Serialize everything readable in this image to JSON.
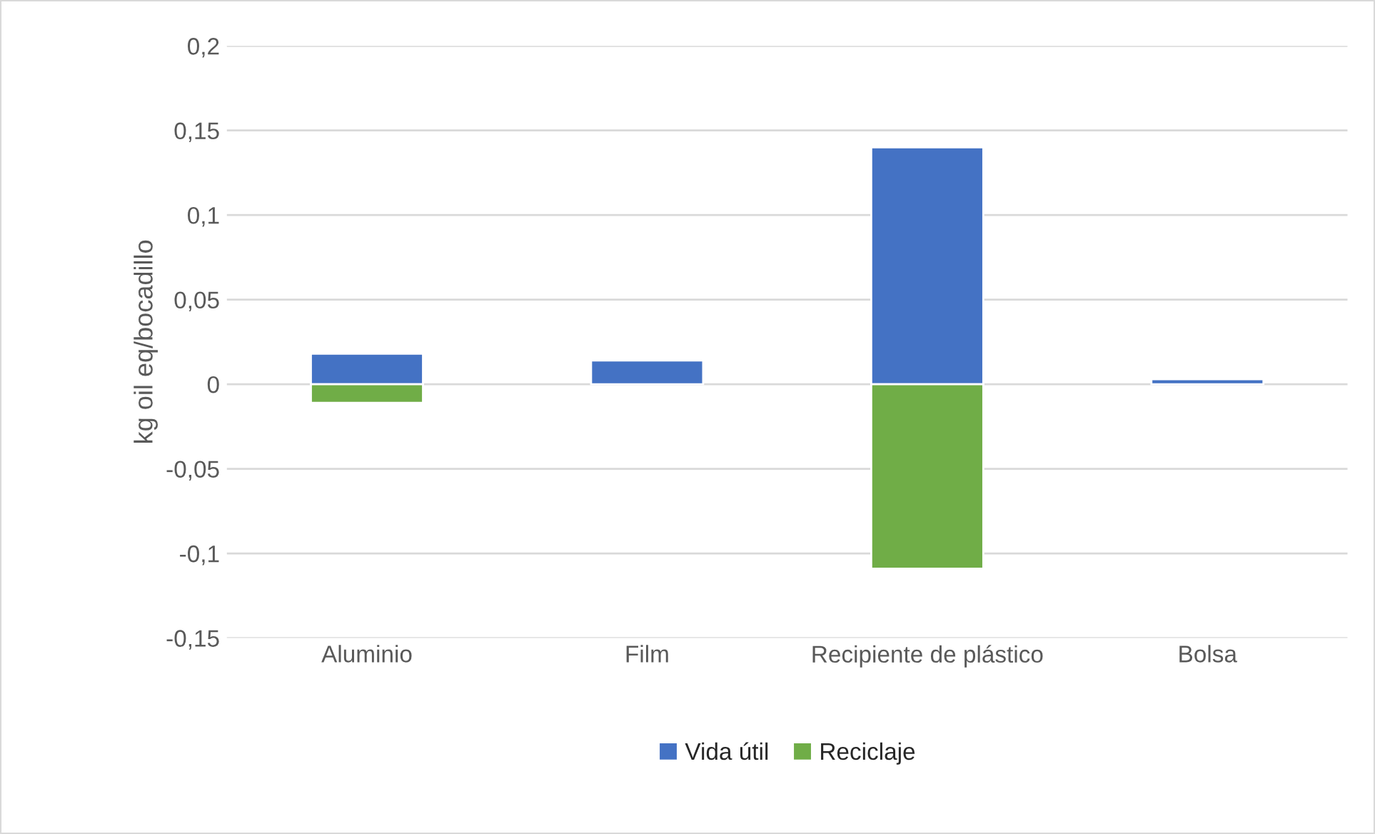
{
  "chart_data": {
    "type": "bar",
    "stacked": true,
    "ylabel": "kg oil eq/bocadillo",
    "categories": [
      "Aluminio",
      "Film",
      "Recipiente de plástico",
      "Bolsa"
    ],
    "series": [
      {
        "name": "Vida útil",
        "color": "#4472c4",
        "values": [
          0.018,
          0.014,
          0.14,
          0.003
        ]
      },
      {
        "name": "Reciclaje",
        "color": "#70ad47",
        "values": [
          -0.011,
          null,
          -0.109,
          null
        ]
      }
    ],
    "ylim": [
      -0.15,
      0.2
    ],
    "yticks": [
      {
        "value": -0.15,
        "label": "-0,15"
      },
      {
        "value": -0.1,
        "label": "-0,1"
      },
      {
        "value": -0.05,
        "label": "-0,05"
      },
      {
        "value": 0,
        "label": "0"
      },
      {
        "value": 0.05,
        "label": "0,05"
      },
      {
        "value": 0.1,
        "label": "0,1"
      },
      {
        "value": 0.15,
        "label": "0,15"
      },
      {
        "value": 0.2,
        "label": "0,2"
      }
    ],
    "grid": "y",
    "legend": "bottom"
  }
}
